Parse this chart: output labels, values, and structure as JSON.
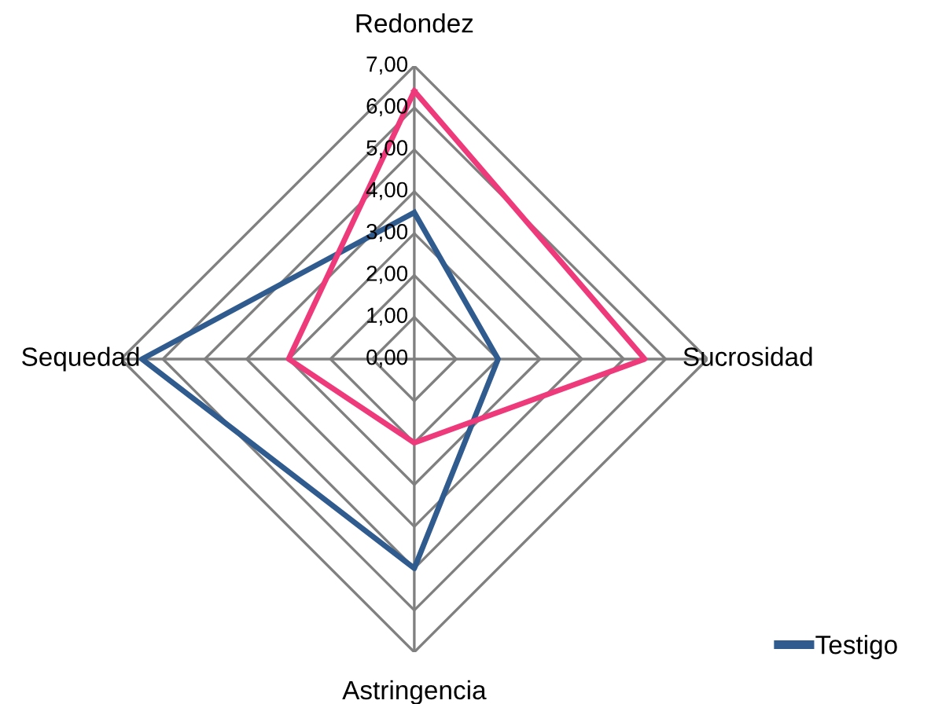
{
  "chart_data": {
    "type": "radar",
    "categories": [
      "Redondez",
      "Sucrosidad",
      "Astringencia",
      "Sequedad"
    ],
    "series": [
      {
        "name": "Testigo",
        "color": "#2f5b8e",
        "values": [
          3.5,
          2.0,
          5.0,
          6.5
        ]
      },
      {
        "color": "#ee3a7a",
        "values": [
          6.4,
          5.5,
          2.0,
          3.0
        ]
      }
    ],
    "ylim": [
      0,
      7
    ],
    "yticks": [
      {
        "value": 0,
        "label": "0,00"
      },
      {
        "value": 1,
        "label": "1,00"
      },
      {
        "value": 2,
        "label": "2,00"
      },
      {
        "value": 3,
        "label": "3,00"
      },
      {
        "value": 4,
        "label": "4,00"
      },
      {
        "value": 5,
        "label": "5,00"
      },
      {
        "value": 6,
        "label": "6,00"
      },
      {
        "value": 7,
        "label": "7,00"
      }
    ],
    "grid": true,
    "legend": "bottom right",
    "marker": "none",
    "line_style": "solid"
  }
}
